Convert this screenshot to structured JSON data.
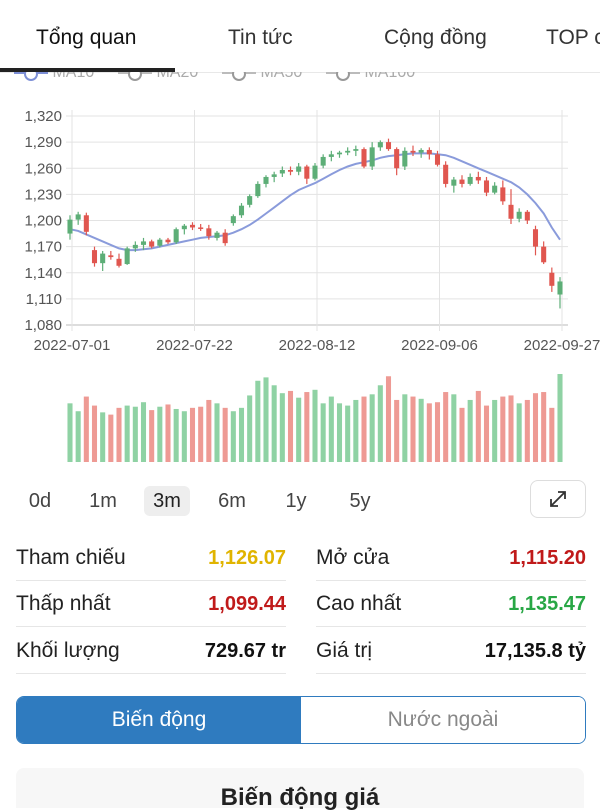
{
  "tabs": [
    {
      "label": "Tổng quan",
      "active": true
    },
    {
      "label": "Tin tức",
      "active": false
    },
    {
      "label": "Cộng đồng",
      "active": false
    },
    {
      "label": "TOP c",
      "active": false
    }
  ],
  "legend": [
    "MA10",
    "MA20",
    "MA50",
    "MA100"
  ],
  "chart_data": {
    "type": "candlestick",
    "y_ticks": [
      "1,320",
      "1,290",
      "1,260",
      "1,230",
      "1,200",
      "1,170",
      "1,140",
      "1,110",
      "1,080"
    ],
    "ylim": [
      1080,
      1320
    ],
    "x_ticks": [
      "2022-07-01",
      "2022-07-22",
      "2022-08-12",
      "2022-09-06",
      "2022-09-27"
    ],
    "x_tick_index": [
      0,
      15,
      30,
      45,
      60
    ],
    "colors": {
      "up": "#5dae77",
      "down": "#e0564f",
      "ma10": "#8a9bdb",
      "vol_up": "#8fd2a4",
      "vol_down": "#ee9a94",
      "grid": "#e3e3e3"
    },
    "candles": [
      [
        1185,
        1206,
        1178,
        1201
      ],
      [
        1201,
        1210,
        1195,
        1207
      ],
      [
        1206,
        1209,
        1183,
        1187
      ],
      [
        1166,
        1170,
        1147,
        1151
      ],
      [
        1151,
        1165,
        1142,
        1162
      ],
      [
        1160,
        1165,
        1155,
        1158
      ],
      [
        1156,
        1162,
        1146,
        1148
      ],
      [
        1150,
        1170,
        1149,
        1168
      ],
      [
        1168,
        1176,
        1164,
        1172
      ],
      [
        1172,
        1180,
        1166,
        1176
      ],
      [
        1176,
        1178,
        1168,
        1170
      ],
      [
        1171,
        1180,
        1169,
        1178
      ],
      [
        1178,
        1180,
        1173,
        1175
      ],
      [
        1175,
        1192,
        1173,
        1190
      ],
      [
        1190,
        1196,
        1184,
        1194
      ],
      [
        1195,
        1198,
        1189,
        1192
      ],
      [
        1192,
        1196,
        1188,
        1191
      ],
      [
        1191,
        1195,
        1178,
        1182
      ],
      [
        1180,
        1188,
        1177,
        1186
      ],
      [
        1186,
        1190,
        1171,
        1174
      ],
      [
        1197,
        1207,
        1194,
        1205
      ],
      [
        1206,
        1220,
        1203,
        1217
      ],
      [
        1218,
        1230,
        1215,
        1228
      ],
      [
        1228,
        1245,
        1226,
        1242
      ],
      [
        1242,
        1252,
        1238,
        1250
      ],
      [
        1250,
        1256,
        1244,
        1253
      ],
      [
        1254,
        1262,
        1250,
        1258
      ],
      [
        1258,
        1262,
        1252,
        1256
      ],
      [
        1256,
        1266,
        1252,
        1262
      ],
      [
        1262,
        1264,
        1242,
        1248
      ],
      [
        1248,
        1266,
        1246,
        1263
      ],
      [
        1263,
        1276,
        1260,
        1273
      ],
      [
        1273,
        1280,
        1268,
        1276
      ],
      [
        1276,
        1280,
        1272,
        1278
      ],
      [
        1278,
        1284,
        1275,
        1280
      ],
      [
        1280,
        1286,
        1274,
        1282
      ],
      [
        1282,
        1284,
        1260,
        1262
      ],
      [
        1262,
        1290,
        1258,
        1284
      ],
      [
        1284,
        1292,
        1280,
        1290
      ],
      [
        1290,
        1294,
        1280,
        1282
      ],
      [
        1282,
        1284,
        1252,
        1260
      ],
      [
        1262,
        1284,
        1258,
        1280
      ],
      [
        1280,
        1286,
        1274,
        1278
      ],
      [
        1278,
        1283,
        1272,
        1281
      ],
      [
        1281,
        1284,
        1270,
        1276
      ],
      [
        1276,
        1280,
        1262,
        1264
      ],
      [
        1264,
        1268,
        1238,
        1242
      ],
      [
        1240,
        1250,
        1232,
        1247
      ],
      [
        1247,
        1252,
        1238,
        1242
      ],
      [
        1242,
        1254,
        1240,
        1250
      ],
      [
        1250,
        1256,
        1242,
        1246
      ],
      [
        1246,
        1250,
        1228,
        1232
      ],
      [
        1232,
        1244,
        1230,
        1240
      ],
      [
        1238,
        1246,
        1218,
        1222
      ],
      [
        1218,
        1236,
        1196,
        1202
      ],
      [
        1202,
        1214,
        1198,
        1210
      ],
      [
        1210,
        1212,
        1196,
        1200
      ],
      [
        1190,
        1194,
        1160,
        1170
      ],
      [
        1170,
        1176,
        1150,
        1152
      ],
      [
        1140,
        1146,
        1118,
        1125
      ],
      [
        1115,
        1135,
        1099,
        1130
      ]
    ],
    "ma10": [
      1190,
      1188,
      1184,
      1180,
      1176,
      1172,
      1168,
      1166,
      1166,
      1167,
      1168,
      1170,
      1172,
      1174,
      1176,
      1178,
      1180,
      1181,
      1182,
      1183,
      1186,
      1190,
      1195,
      1201,
      1208,
      1215,
      1222,
      1229,
      1235,
      1239,
      1243,
      1248,
      1253,
      1258,
      1262,
      1265,
      1267,
      1269,
      1272,
      1274,
      1275,
      1276,
      1277,
      1277,
      1277,
      1276,
      1275,
      1272,
      1268,
      1264,
      1260,
      1256,
      1252,
      1248,
      1244,
      1238,
      1230,
      1220,
      1208,
      1192,
      1178
    ],
    "volumes": [
      52,
      45,
      58,
      50,
      44,
      42,
      48,
      50,
      49,
      53,
      46,
      49,
      51,
      47,
      45,
      48,
      49,
      55,
      52,
      48,
      45,
      48,
      59,
      72,
      75,
      68,
      61,
      63,
      57,
      62,
      64,
      52,
      58,
      52,
      50,
      55,
      58,
      60,
      68,
      76,
      55,
      60,
      58,
      56,
      52,
      53,
      62,
      60,
      48,
      55,
      63,
      50,
      55,
      58,
      59,
      52,
      55,
      61,
      62,
      48,
      78
    ]
  },
  "ranges": [
    {
      "label": "0d",
      "active": false
    },
    {
      "label": "1m",
      "active": false
    },
    {
      "label": "3m",
      "active": true
    },
    {
      "label": "6m",
      "active": false
    },
    {
      "label": "1y",
      "active": false
    },
    {
      "label": "5y",
      "active": false
    }
  ],
  "stats": {
    "ref_label": "Tham chiếu",
    "ref_value": "1,126.07",
    "ref_color": "#e0b400",
    "open_label": "Mở cửa",
    "open_value": "1,115.20",
    "open_color": "#c01a1a",
    "low_label": "Thấp nhất",
    "low_value": "1,099.44",
    "low_color": "#c01a1a",
    "high_label": "Cao nhất",
    "high_value": "1,135.47",
    "high_color": "#28a745",
    "vol_label": "Khối lượng",
    "vol_value": "729.67 tr",
    "vol_color": "#111111",
    "val_label": "Giá trị",
    "val_value": "17,135.8 tỷ",
    "val_color": "#111111"
  },
  "toggle": {
    "left": "Biến động",
    "right": "Nước ngoài"
  },
  "section_title": "Biến động giá"
}
